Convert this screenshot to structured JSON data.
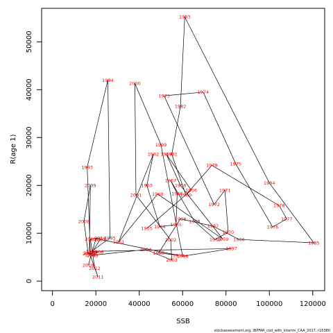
{
  "chart_data": {
    "type": "line",
    "title": "",
    "xlabel": "SSB",
    "ylabel": "R(age 1)",
    "xlim": [
      -5000,
      125500
    ],
    "ylim": [
      -2000,
      57000
    ],
    "xticks": [
      0,
      20000,
      40000,
      60000,
      80000,
      100000,
      120000
    ],
    "yticks": [
      0,
      10000,
      20000,
      30000,
      40000,
      50000
    ],
    "grid": false,
    "legend": "none",
    "line_color": "#000000",
    "label_color": "#ff0000",
    "points": [
      {
        "year": "1955",
        "x": 43500,
        "y": 11000
      },
      {
        "year": "1956",
        "x": 64000,
        "y": 19000
      },
      {
        "year": "1957",
        "x": 52500,
        "y": 26500
      },
      {
        "year": "1958",
        "x": 59000,
        "y": 20000
      },
      {
        "year": "1959",
        "x": 78500,
        "y": 8800
      },
      {
        "year": "1960",
        "x": 48500,
        "y": 18200
      },
      {
        "year": "1961",
        "x": 30500,
        "y": 8200
      },
      {
        "year": "1962",
        "x": 46500,
        "y": 26500
      },
      {
        "year": "1963",
        "x": 43500,
        "y": 20000
      },
      {
        "year": "1964",
        "x": 49500,
        "y": 11400
      },
      {
        "year": "1965",
        "x": 57000,
        "y": 11800
      },
      {
        "year": "1966",
        "x": 57500,
        "y": 18300
      },
      {
        "year": "1967",
        "x": 54500,
        "y": 21000
      },
      {
        "year": "1968",
        "x": 65500,
        "y": 12500
      },
      {
        "year": "1969",
        "x": 75000,
        "y": 8700
      },
      {
        "year": "1970",
        "x": 81000,
        "y": 10200
      },
      {
        "year": "1971",
        "x": 79500,
        "y": 19000
      },
      {
        "year": "1972",
        "x": 74500,
        "y": 16000
      },
      {
        "year": "1973",
        "x": 51500,
        "y": 38700
      },
      {
        "year": "1974",
        "x": 69500,
        "y": 39500
      },
      {
        "year": "1975",
        "x": 84500,
        "y": 24500
      },
      {
        "year": "1976",
        "x": 101500,
        "y": 11300
      },
      {
        "year": "1977",
        "x": 108000,
        "y": 13000
      },
      {
        "year": "1978",
        "x": 104500,
        "y": 15800
      },
      {
        "year": "1979",
        "x": 73500,
        "y": 24200
      },
      {
        "year": "1980",
        "x": 61500,
        "y": 18000
      },
      {
        "year": "1981",
        "x": 55000,
        "y": 26500
      },
      {
        "year": "1982",
        "x": 59000,
        "y": 36500
      },
      {
        "year": "1983",
        "x": 61000,
        "y": 55200
      },
      {
        "year": "1984",
        "x": 100000,
        "y": 20500
      },
      {
        "year": "1985",
        "x": 120500,
        "y": 8000
      },
      {
        "year": "1986",
        "x": 86000,
        "y": 8700
      },
      {
        "year": "1987",
        "x": 74000,
        "y": 11500
      },
      {
        "year": "1988",
        "x": 59000,
        "y": 13000
      },
      {
        "year": "1989",
        "x": 49000,
        "y": 5900
      },
      {
        "year": "1990",
        "x": 58000,
        "y": 5400
      },
      {
        "year": "1991",
        "x": 22000,
        "y": 8700
      },
      {
        "year": "1992",
        "x": 17500,
        "y": 5500
      },
      {
        "year": "1993",
        "x": 16000,
        "y": 23800
      },
      {
        "year": "1994",
        "x": 25500,
        "y": 42000
      },
      {
        "year": "1995",
        "x": 26500,
        "y": 9000
      },
      {
        "year": "1996",
        "x": 18000,
        "y": 6200
      },
      {
        "year": "1997",
        "x": 82500,
        "y": 6800
      },
      {
        "year": "1998",
        "x": 60000,
        "y": 5200
      },
      {
        "year": "1999",
        "x": 50000,
        "y": 28500
      },
      {
        "year": "2000",
        "x": 38000,
        "y": 41300
      },
      {
        "year": "2001",
        "x": 38500,
        "y": 18000
      },
      {
        "year": "2002",
        "x": 54500,
        "y": 8600
      },
      {
        "year": "2003",
        "x": 55000,
        "y": 4400
      },
      {
        "year": "2004",
        "x": 43000,
        "y": 6600
      },
      {
        "year": "2005",
        "x": 18500,
        "y": 5400
      },
      {
        "year": "2006",
        "x": 21000,
        "y": 6100
      },
      {
        "year": "2007",
        "x": 16500,
        "y": 5700
      },
      {
        "year": "2008",
        "x": 14500,
        "y": 12500
      },
      {
        "year": "2009",
        "x": 17500,
        "y": 20000
      },
      {
        "year": "2010",
        "x": 17000,
        "y": 5900
      },
      {
        "year": "2011",
        "x": 21000,
        "y": 900
      },
      {
        "year": "2012",
        "x": 19500,
        "y": 2700
      },
      {
        "year": "2013",
        "x": 17500,
        "y": 8800
      },
      {
        "year": "2014",
        "x": 22000,
        "y": 9000
      },
      {
        "year": "2015",
        "x": 20000,
        "y": 8800
      },
      {
        "year": "2016",
        "x": 16500,
        "y": 3300
      }
    ]
  },
  "credit": "stockassessment.org, IBPFAR_cod_with_interim_CAA_2017, r16380"
}
